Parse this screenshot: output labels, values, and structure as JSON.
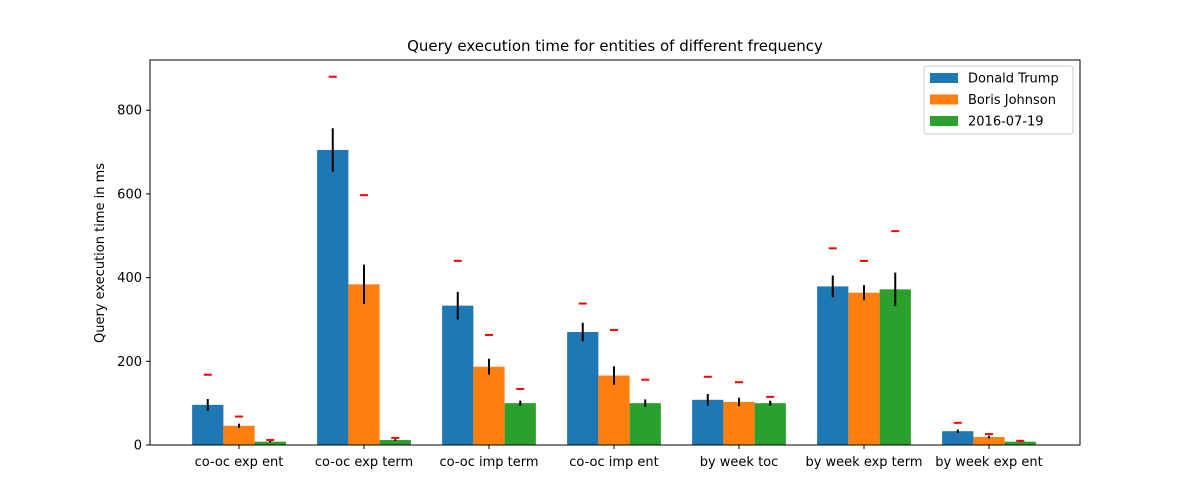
{
  "chart_data": {
    "type": "bar",
    "title": "Query execution time for entities of different frequency",
    "xlabel": "",
    "ylabel": "Query execution time in ms",
    "ylim": [
      0,
      920
    ],
    "yticks": [
      0,
      200,
      400,
      600,
      800
    ],
    "grid": false,
    "legend_position": "top-right",
    "categories": [
      "co-oc exp ent",
      "co-oc exp term",
      "co-oc imp term",
      "co-oc imp ent",
      "by week toc",
      "by week exp term",
      "by week exp ent"
    ],
    "series": [
      {
        "name": "Donald Trump",
        "color": "#1f77b4",
        "values": [
          96,
          705,
          333,
          270,
          108,
          379,
          33
        ],
        "errors": [
          14,
          52,
          33,
          22,
          14,
          26,
          4
        ],
        "max_markers": [
          168,
          880,
          440,
          338,
          163,
          470,
          53
        ]
      },
      {
        "name": "Boris Johnson",
        "color": "#ff7f0e",
        "values": [
          46,
          384,
          187,
          166,
          103,
          364,
          19
        ],
        "errors": [
          5,
          47,
          19,
          22,
          10,
          18,
          3
        ],
        "max_markers": [
          68,
          597,
          263,
          275,
          150,
          440,
          26
        ]
      },
      {
        "name": "2016-07-19",
        "color": "#2ca02c",
        "values": [
          8,
          12,
          100,
          100,
          100,
          372,
          8
        ],
        "errors": [
          2,
          2,
          6,
          9,
          6,
          40,
          1
        ],
        "max_markers": [
          12,
          17,
          134,
          156,
          115,
          511,
          10
        ]
      }
    ],
    "error_bar_color": "#000000",
    "max_marker_color": "#ff0000"
  }
}
